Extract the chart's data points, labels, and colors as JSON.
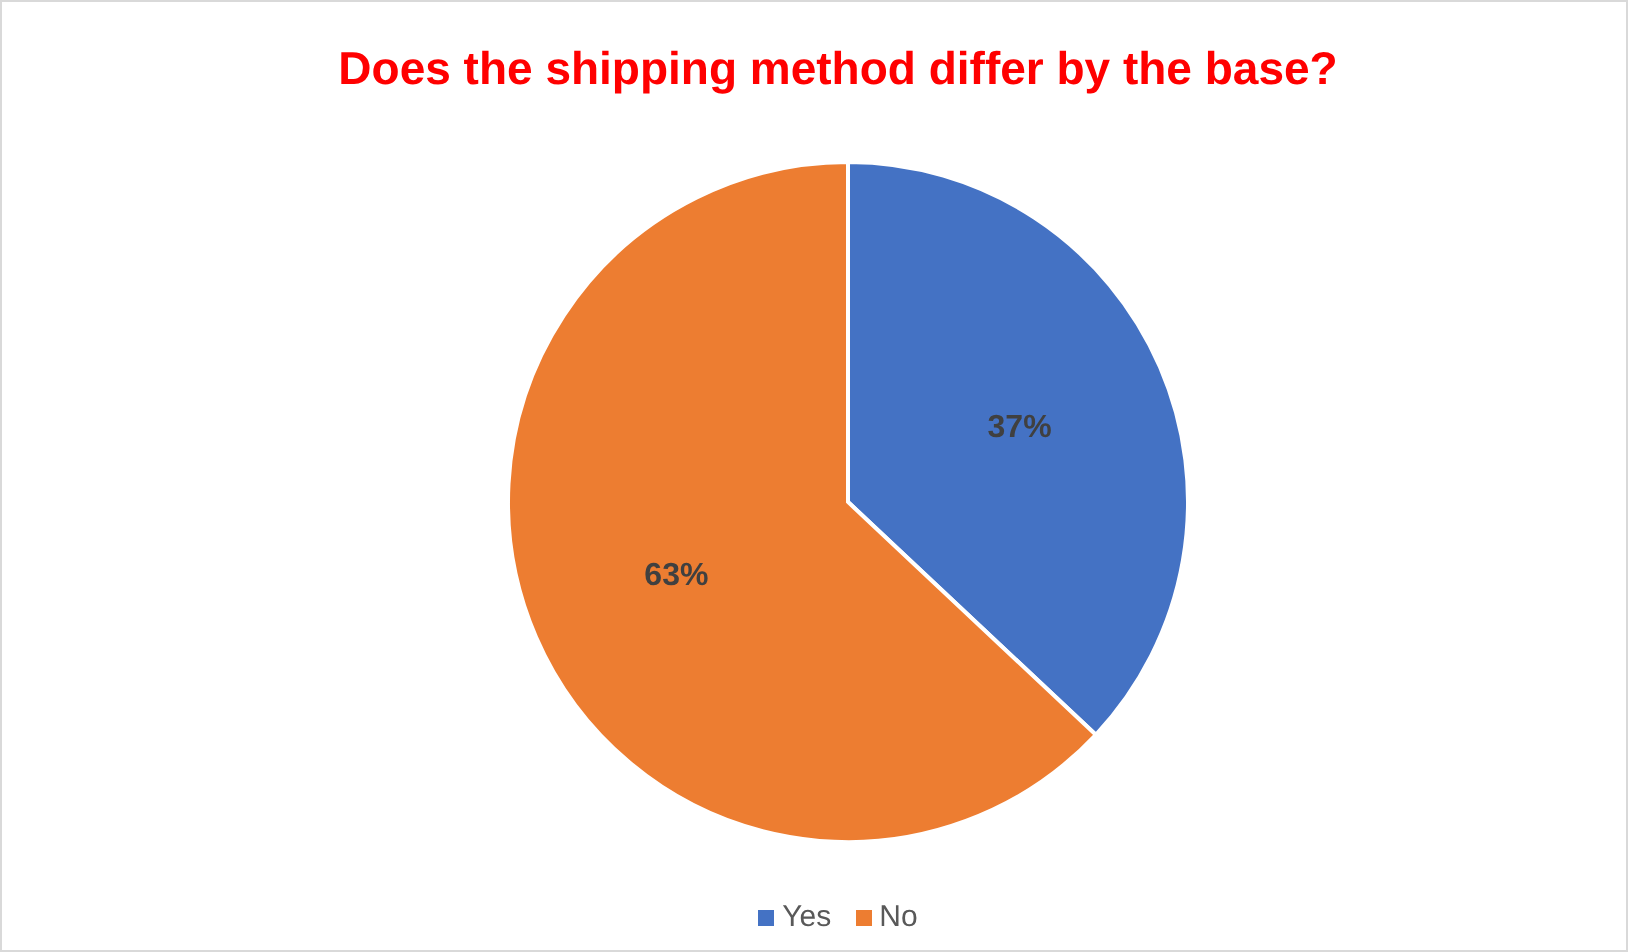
{
  "chart_data": {
    "type": "pie",
    "title": "Does the shipping method differ by the base?",
    "categories": [
      "Yes",
      "No"
    ],
    "values": [
      37,
      63
    ],
    "colors": [
      "#4472c4",
      "#ed7d31"
    ],
    "value_labels": [
      "37%",
      "63%"
    ],
    "legend": "bottom"
  }
}
